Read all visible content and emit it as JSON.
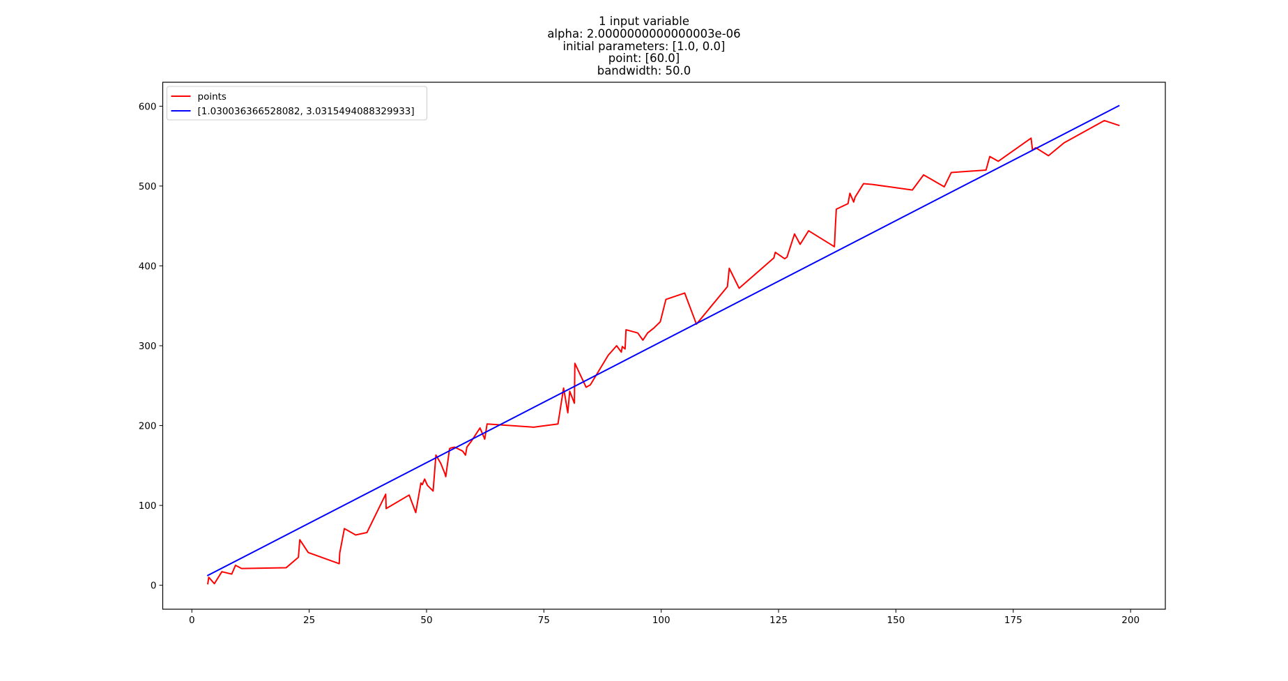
{
  "chart_data": {
    "type": "line",
    "title_lines": [
      "1 input variable",
      "alpha: 2.0000000000000003e-06",
      "initial parameters: [1.0, 0.0]",
      "point: [60.0]",
      "bandwidth: 50.0"
    ],
    "xlabel": "",
    "ylabel": "",
    "xlim": [
      -6.2,
      207.4
    ],
    "ylim": [
      -30,
      630
    ],
    "x_ticks": [
      0,
      25,
      50,
      75,
      100,
      125,
      150,
      175,
      200
    ],
    "y_ticks": [
      0,
      100,
      200,
      300,
      400,
      500,
      600
    ],
    "grid": false,
    "legend_position": "upper-left",
    "series": [
      {
        "name": "points",
        "color": "#ff0000",
        "points": [
          [
            3.4,
            2
          ],
          [
            3.6,
            10
          ],
          [
            4.8,
            2
          ],
          [
            6.4,
            17
          ],
          [
            8.5,
            14
          ],
          [
            9.3,
            25
          ],
          [
            10.6,
            21
          ],
          [
            20.1,
            22
          ],
          [
            22.7,
            35
          ],
          [
            23.0,
            57
          ],
          [
            24.8,
            41
          ],
          [
            31.4,
            27
          ],
          [
            31.5,
            40
          ],
          [
            32.5,
            71
          ],
          [
            34.9,
            63
          ],
          [
            37.3,
            66
          ],
          [
            41.3,
            114
          ],
          [
            41.4,
            96
          ],
          [
            46.3,
            113
          ],
          [
            47.7,
            91
          ],
          [
            48.8,
            128
          ],
          [
            49.1,
            126
          ],
          [
            49.6,
            133
          ],
          [
            50.2,
            125
          ],
          [
            51.4,
            118
          ],
          [
            52.0,
            163
          ],
          [
            53.0,
            153
          ],
          [
            53.9,
            140
          ],
          [
            54.1,
            136
          ],
          [
            54.9,
            171
          ],
          [
            55.2,
            172
          ],
          [
            56.0,
            173
          ],
          [
            57.7,
            168
          ],
          [
            58.3,
            163
          ],
          [
            58.6,
            173
          ],
          [
            59.1,
            177
          ],
          [
            59.5,
            180
          ],
          [
            61.4,
            197
          ],
          [
            62.4,
            183
          ],
          [
            62.9,
            202
          ],
          [
            72.8,
            198
          ],
          [
            78.0,
            202
          ],
          [
            79.2,
            247
          ],
          [
            80.1,
            216
          ],
          [
            80.5,
            243
          ],
          [
            81.5,
            228
          ],
          [
            81.6,
            278
          ],
          [
            84.0,
            248
          ],
          [
            84.9,
            251
          ],
          [
            88.7,
            288
          ],
          [
            90.5,
            300
          ],
          [
            91.5,
            292
          ],
          [
            91.7,
            299
          ],
          [
            92.3,
            296
          ],
          [
            92.5,
            320
          ],
          [
            95.0,
            316
          ],
          [
            96.1,
            307
          ],
          [
            97.1,
            316
          ],
          [
            98.4,
            322
          ],
          [
            99.8,
            330
          ],
          [
            101.0,
            358
          ],
          [
            105.0,
            366
          ],
          [
            107.5,
            327
          ],
          [
            114.1,
            374
          ],
          [
            114.5,
            397
          ],
          [
            116.6,
            372
          ],
          [
            124.0,
            410
          ],
          [
            124.3,
            417
          ],
          [
            126.3,
            409
          ],
          [
            126.8,
            411
          ],
          [
            128.4,
            440
          ],
          [
            129.6,
            427
          ],
          [
            131.4,
            444
          ],
          [
            136.9,
            424
          ],
          [
            137.1,
            449
          ],
          [
            137.3,
            471
          ],
          [
            139.8,
            478
          ],
          [
            140.2,
            491
          ],
          [
            141.0,
            480
          ],
          [
            141.3,
            486
          ],
          [
            143.1,
            503
          ],
          [
            145.0,
            502
          ],
          [
            153.5,
            495
          ],
          [
            155.9,
            514
          ],
          [
            160.3,
            499
          ],
          [
            161.8,
            517
          ],
          [
            169.2,
            520
          ],
          [
            170.0,
            537
          ],
          [
            171.8,
            531
          ],
          [
            178.8,
            560
          ],
          [
            179.1,
            545
          ],
          [
            179.8,
            548
          ],
          [
            182.5,
            538
          ],
          [
            185.8,
            554
          ],
          [
            194.4,
            582
          ],
          [
            197.5,
            576
          ]
        ]
      },
      {
        "name": "[1.030036366528082, 3.0315494088329933]",
        "color": "#0000ff",
        "points": [
          [
            3.4,
            12.3
          ],
          [
            197.5,
            600.6
          ]
        ]
      }
    ]
  }
}
